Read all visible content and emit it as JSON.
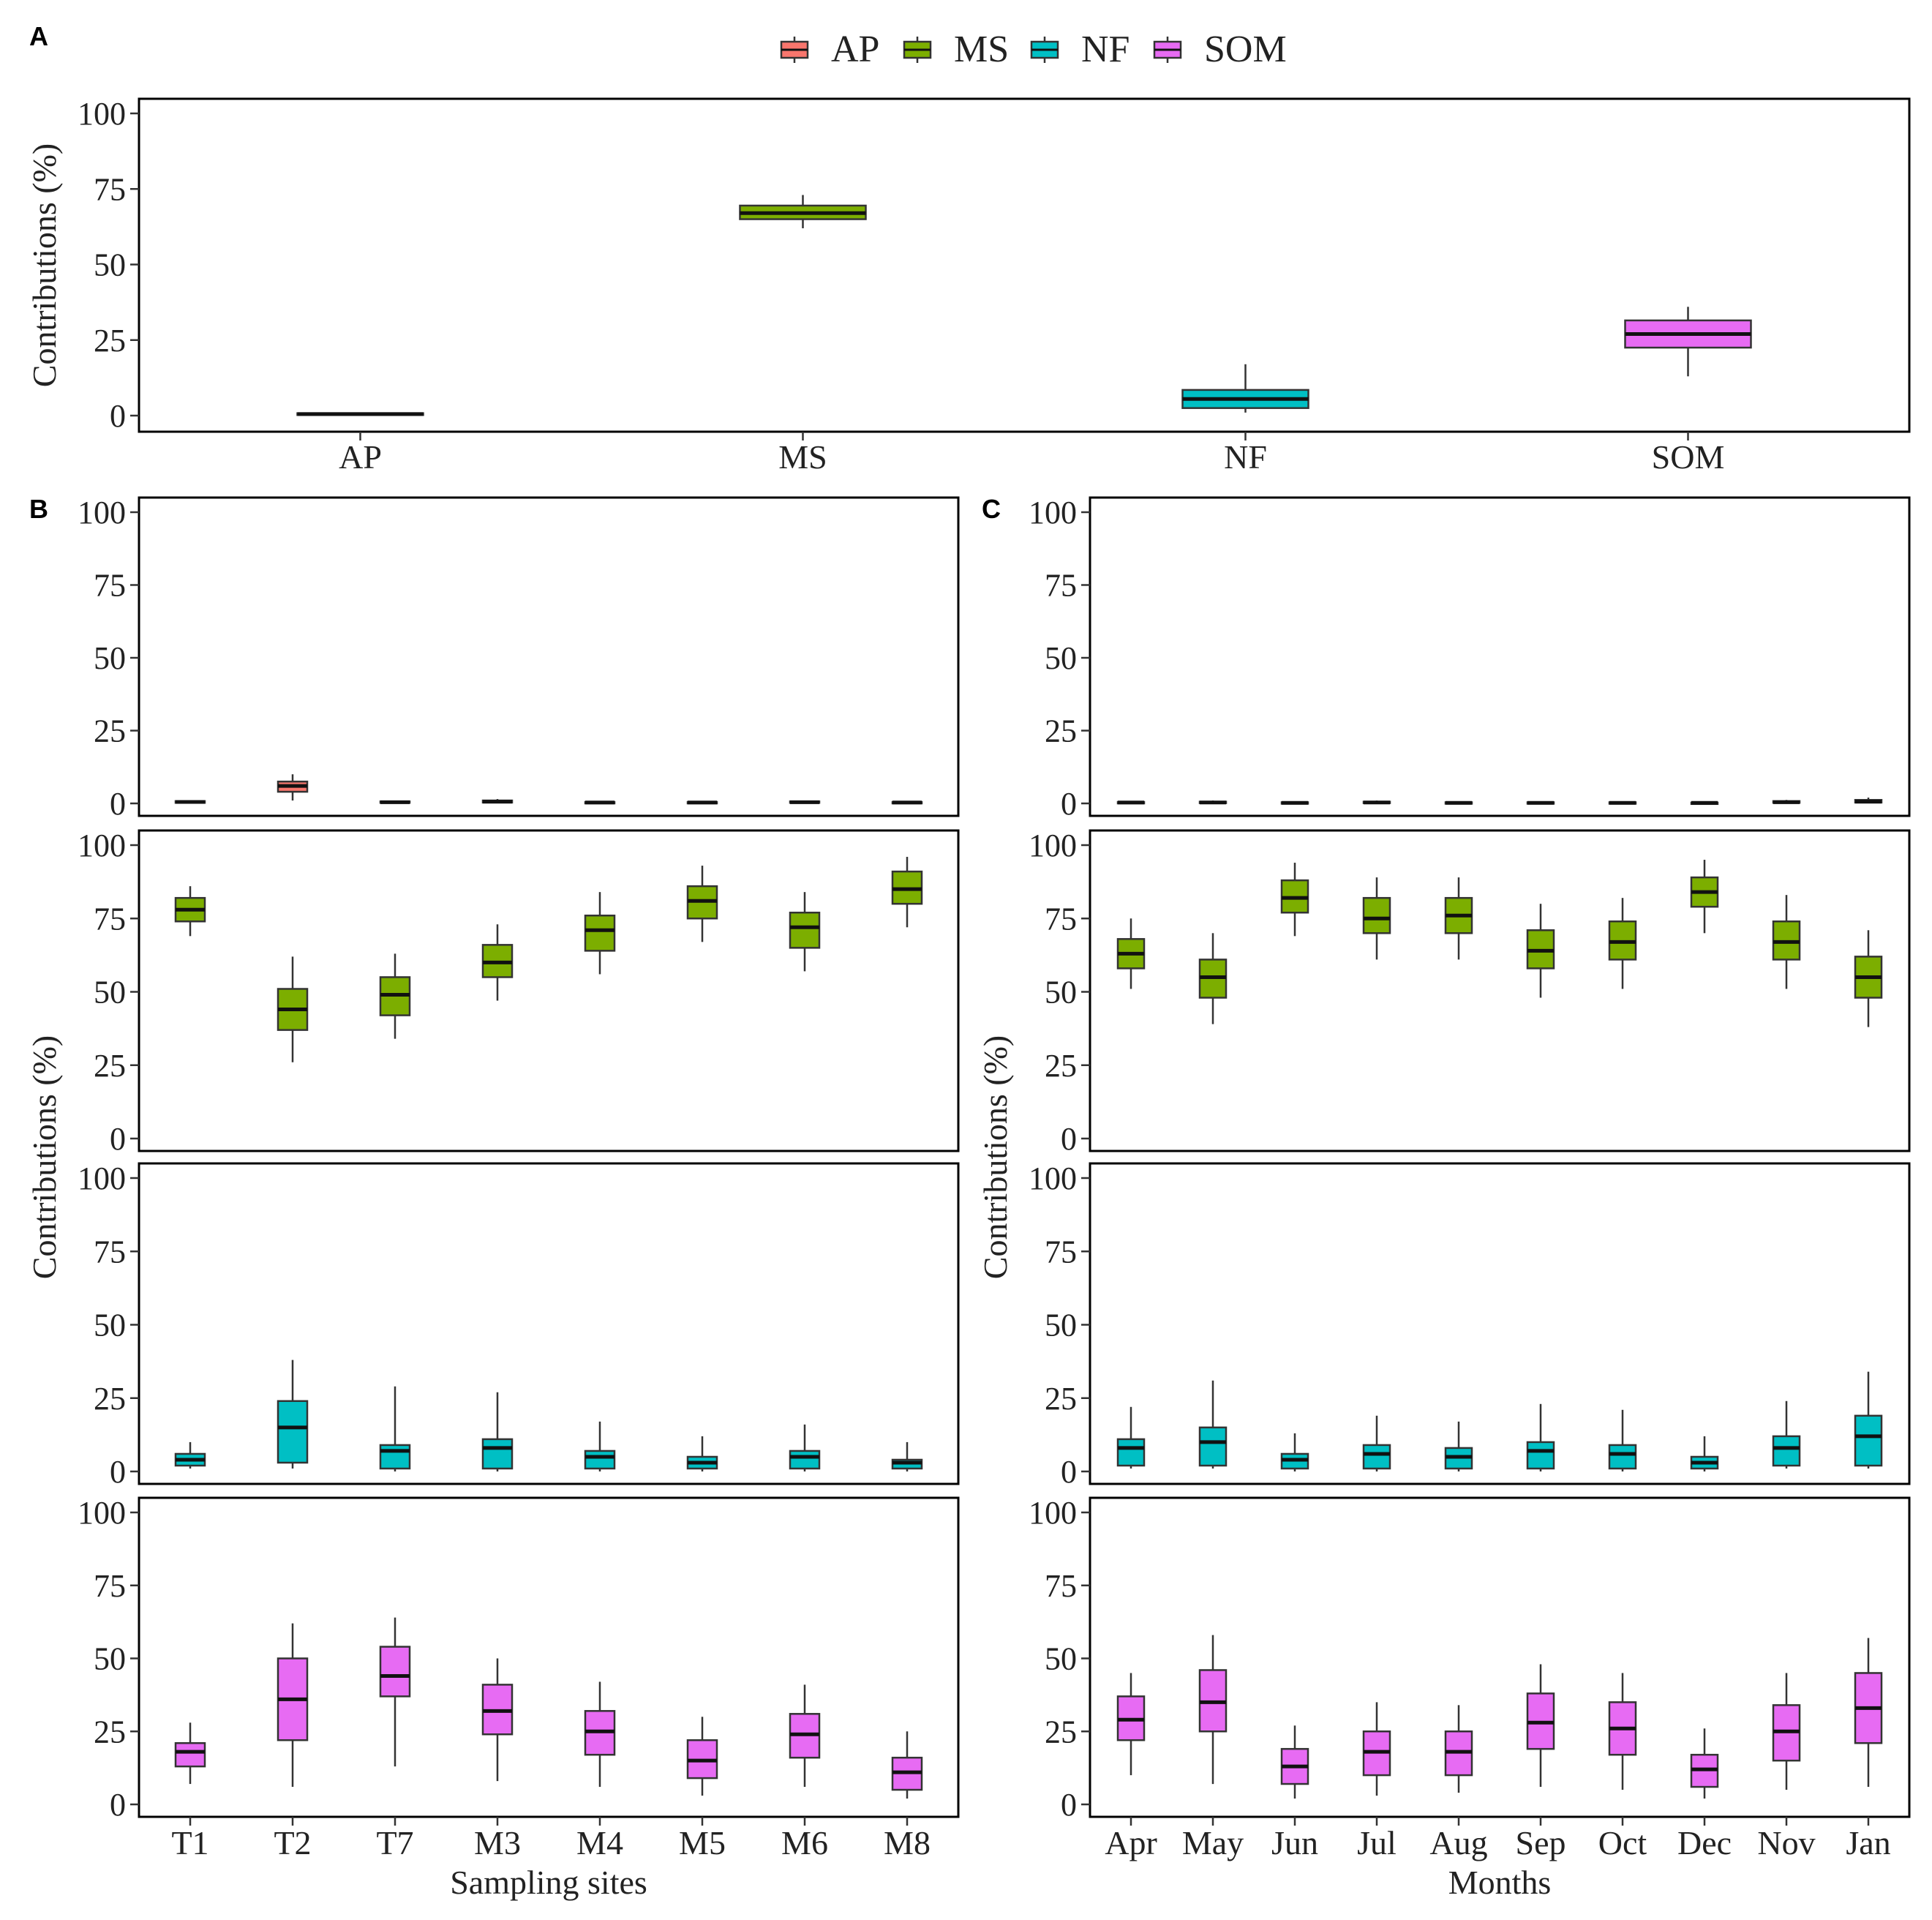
{
  "figure": {
    "panel_labels": {
      "A": "A",
      "B": "B",
      "C": "C"
    },
    "y_axis_label": "Contributions (%)",
    "legend": {
      "items": [
        {
          "key": "AP",
          "label": "AP",
          "color": "#F8766D"
        },
        {
          "key": "MS",
          "label": "MS",
          "color": "#7CAE00"
        },
        {
          "key": "NF",
          "label": "NF",
          "color": "#00BFC4"
        },
        {
          "key": "SOM",
          "label": "SOM",
          "color": "#E76BF3"
        }
      ]
    }
  },
  "chart_data": [
    {
      "panel": "A",
      "type": "box",
      "categories": [
        "AP",
        "MS",
        "NF",
        "SOM"
      ],
      "ylim": [
        0,
        100
      ],
      "yticks": [
        0,
        25,
        50,
        75,
        100
      ],
      "ylabel": "Contributions (%)",
      "xlabel": "",
      "boxes": [
        {
          "category": "AP",
          "source": "AP",
          "min": 0,
          "q1": 0.2,
          "median": 0.5,
          "q3": 0.8,
          "max": 1
        },
        {
          "category": "MS",
          "source": "MS",
          "min": 62,
          "q1": 65,
          "median": 67,
          "q3": 69.5,
          "max": 73
        },
        {
          "category": "NF",
          "source": "NF",
          "min": 1,
          "q1": 2.5,
          "median": 5.5,
          "q3": 8.5,
          "max": 17
        },
        {
          "category": "SOM",
          "source": "SOM",
          "min": 13,
          "q1": 22.5,
          "median": 27,
          "q3": 31.5,
          "max": 36
        }
      ]
    },
    {
      "panel": "B",
      "type": "box",
      "xlabel": "Sampling sites",
      "ylabel": "Contributions (%)",
      "categories": [
        "T1",
        "T2",
        "T7",
        "M3",
        "M4",
        "M5",
        "M6",
        "M8"
      ],
      "ylim": [
        0,
        100
      ],
      "yticks": [
        0,
        25,
        50,
        75,
        100
      ],
      "series": [
        {
          "source": "AP",
          "boxes": [
            {
              "min": 0,
              "q1": 0.2,
              "median": 0.5,
              "q3": 0.8,
              "max": 1
            },
            {
              "min": 1,
              "q1": 4,
              "median": 6,
              "q3": 7.5,
              "max": 10
            },
            {
              "min": 0,
              "q1": 0.2,
              "median": 0.4,
              "q3": 0.7,
              "max": 1
            },
            {
              "min": 0,
              "q1": 0.3,
              "median": 0.6,
              "q3": 1,
              "max": 1.5
            },
            {
              "min": 0,
              "q1": 0.1,
              "median": 0.3,
              "q3": 0.5,
              "max": 0.8
            },
            {
              "min": 0,
              "q1": 0.1,
              "median": 0.3,
              "q3": 0.5,
              "max": 0.8
            },
            {
              "min": 0,
              "q1": 0.2,
              "median": 0.4,
              "q3": 0.7,
              "max": 1
            },
            {
              "min": 0,
              "q1": 0.1,
              "median": 0.3,
              "q3": 0.5,
              "max": 0.8
            }
          ]
        },
        {
          "source": "MS",
          "boxes": [
            {
              "min": 69,
              "q1": 74,
              "median": 78,
              "q3": 82,
              "max": 86
            },
            {
              "min": 26,
              "q1": 37,
              "median": 44,
              "q3": 51,
              "max": 62
            },
            {
              "min": 34,
              "q1": 42,
              "median": 49,
              "q3": 55,
              "max": 63
            },
            {
              "min": 47,
              "q1": 55,
              "median": 60,
              "q3": 66,
              "max": 73
            },
            {
              "min": 56,
              "q1": 64,
              "median": 71,
              "q3": 76,
              "max": 84
            },
            {
              "min": 67,
              "q1": 75,
              "median": 81,
              "q3": 86,
              "max": 93
            },
            {
              "min": 57,
              "q1": 65,
              "median": 72,
              "q3": 77,
              "max": 84
            },
            {
              "min": 72,
              "q1": 80,
              "median": 85,
              "q3": 91,
              "max": 96
            }
          ]
        },
        {
          "source": "NF",
          "boxes": [
            {
              "min": 1,
              "q1": 2,
              "median": 4,
              "q3": 6,
              "max": 10
            },
            {
              "min": 1,
              "q1": 3,
              "median": 15,
              "q3": 24,
              "max": 38
            },
            {
              "min": 0,
              "q1": 1,
              "median": 7,
              "q3": 9,
              "max": 29
            },
            {
              "min": 0,
              "q1": 1,
              "median": 8,
              "q3": 11,
              "max": 27
            },
            {
              "min": 0,
              "q1": 1,
              "median": 5,
              "q3": 7,
              "max": 17
            },
            {
              "min": 0,
              "q1": 1,
              "median": 3,
              "q3": 5,
              "max": 12
            },
            {
              "min": 0,
              "q1": 1,
              "median": 5,
              "q3": 7,
              "max": 16
            },
            {
              "min": 0,
              "q1": 1,
              "median": 3,
              "q3": 4,
              "max": 10
            }
          ]
        },
        {
          "source": "SOM",
          "boxes": [
            {
              "min": 7,
              "q1": 13,
              "median": 18,
              "q3": 21,
              "max": 28
            },
            {
              "min": 6,
              "q1": 22,
              "median": 36,
              "q3": 50,
              "max": 62
            },
            {
              "min": 13,
              "q1": 37,
              "median": 44,
              "q3": 54,
              "max": 64
            },
            {
              "min": 8,
              "q1": 24,
              "median": 32,
              "q3": 41,
              "max": 50
            },
            {
              "min": 6,
              "q1": 17,
              "median": 25,
              "q3": 32,
              "max": 42
            },
            {
              "min": 3,
              "q1": 9,
              "median": 15,
              "q3": 22,
              "max": 30
            },
            {
              "min": 6,
              "q1": 16,
              "median": 24,
              "q3": 31,
              "max": 41
            },
            {
              "min": 2,
              "q1": 5,
              "median": 11,
              "q3": 16,
              "max": 25
            }
          ]
        }
      ]
    },
    {
      "panel": "C",
      "type": "box",
      "xlabel": "Months",
      "ylabel": "Contributions (%)",
      "categories": [
        "Apr",
        "May",
        "Jun",
        "Jul",
        "Aug",
        "Sep",
        "Oct",
        "Dec",
        "Nov",
        "Jan"
      ],
      "ylim": [
        0,
        100
      ],
      "yticks": [
        0,
        25,
        50,
        75,
        100
      ],
      "series": [
        {
          "source": "AP",
          "boxes": [
            {
              "min": 0,
              "q1": 0.1,
              "median": 0.3,
              "q3": 0.5,
              "max": 0.8
            },
            {
              "min": 0,
              "q1": 0.1,
              "median": 0.3,
              "q3": 0.6,
              "max": 1
            },
            {
              "min": 0,
              "q1": 0.1,
              "median": 0.2,
              "q3": 0.4,
              "max": 0.6
            },
            {
              "min": 0,
              "q1": 0.1,
              "median": 0.3,
              "q3": 0.6,
              "max": 1
            },
            {
              "min": 0,
              "q1": 0.1,
              "median": 0.2,
              "q3": 0.4,
              "max": 0.6
            },
            {
              "min": 0,
              "q1": 0.1,
              "median": 0.2,
              "q3": 0.4,
              "max": 0.6
            },
            {
              "min": 0,
              "q1": 0.1,
              "median": 0.2,
              "q3": 0.4,
              "max": 0.6
            },
            {
              "min": 0,
              "q1": 0.1,
              "median": 0.2,
              "q3": 0.3,
              "max": 0.5
            },
            {
              "min": 0,
              "q1": 0.2,
              "median": 0.4,
              "q3": 0.8,
              "max": 1.2
            },
            {
              "min": 0,
              "q1": 0.3,
              "median": 0.6,
              "q3": 1.2,
              "max": 2
            }
          ]
        },
        {
          "source": "MS",
          "boxes": [
            {
              "min": 51,
              "q1": 58,
              "median": 63,
              "q3": 68,
              "max": 75
            },
            {
              "min": 39,
              "q1": 48,
              "median": 55,
              "q3": 61,
              "max": 70
            },
            {
              "min": 69,
              "q1": 77,
              "median": 82,
              "q3": 88,
              "max": 94
            },
            {
              "min": 61,
              "q1": 70,
              "median": 75,
              "q3": 82,
              "max": 89
            },
            {
              "min": 61,
              "q1": 70,
              "median": 76,
              "q3": 82,
              "max": 89
            },
            {
              "min": 48,
              "q1": 58,
              "median": 64,
              "q3": 71,
              "max": 80
            },
            {
              "min": 51,
              "q1": 61,
              "median": 67,
              "q3": 74,
              "max": 82
            },
            {
              "min": 70,
              "q1": 79,
              "median": 84,
              "q3": 89,
              "max": 95
            },
            {
              "min": 51,
              "q1": 61,
              "median": 67,
              "q3": 74,
              "max": 83
            },
            {
              "min": 38,
              "q1": 48,
              "median": 55,
              "q3": 62,
              "max": 71
            }
          ]
        },
        {
          "source": "NF",
          "boxes": [
            {
              "min": 1,
              "q1": 2,
              "median": 8,
              "q3": 11,
              "max": 22
            },
            {
              "min": 1,
              "q1": 2,
              "median": 10,
              "q3": 15,
              "max": 31
            },
            {
              "min": 0,
              "q1": 1,
              "median": 4,
              "q3": 6,
              "max": 13
            },
            {
              "min": 0,
              "q1": 1,
              "median": 6,
              "q3": 9,
              "max": 19
            },
            {
              "min": 0,
              "q1": 1,
              "median": 5,
              "q3": 8,
              "max": 17
            },
            {
              "min": 0,
              "q1": 1,
              "median": 7,
              "q3": 10,
              "max": 23
            },
            {
              "min": 0,
              "q1": 1,
              "median": 6,
              "q3": 9,
              "max": 21
            },
            {
              "min": 0,
              "q1": 1,
              "median": 3,
              "q3": 5,
              "max": 12
            },
            {
              "min": 1,
              "q1": 2,
              "median": 8,
              "q3": 12,
              "max": 24
            },
            {
              "min": 1,
              "q1": 2,
              "median": 12,
              "q3": 19,
              "max": 34
            }
          ]
        },
        {
          "source": "SOM",
          "boxes": [
            {
              "min": 10,
              "q1": 22,
              "median": 29,
              "q3": 37,
              "max": 45
            },
            {
              "min": 7,
              "q1": 25,
              "median": 35,
              "q3": 46,
              "max": 58
            },
            {
              "min": 2,
              "q1": 7,
              "median": 13,
              "q3": 19,
              "max": 27
            },
            {
              "min": 3,
              "q1": 10,
              "median": 18,
              "q3": 25,
              "max": 35
            },
            {
              "min": 4,
              "q1": 10,
              "median": 18,
              "q3": 25,
              "max": 34
            },
            {
              "min": 6,
              "q1": 19,
              "median": 28,
              "q3": 38,
              "max": 48
            },
            {
              "min": 5,
              "q1": 17,
              "median": 26,
              "q3": 35,
              "max": 45
            },
            {
              "min": 2,
              "q1": 6,
              "median": 12,
              "q3": 17,
              "max": 26
            },
            {
              "min": 5,
              "q1": 15,
              "median": 25,
              "q3": 34,
              "max": 45
            },
            {
              "min": 6,
              "q1": 21,
              "median": 33,
              "q3": 45,
              "max": 57
            }
          ]
        }
      ]
    }
  ]
}
